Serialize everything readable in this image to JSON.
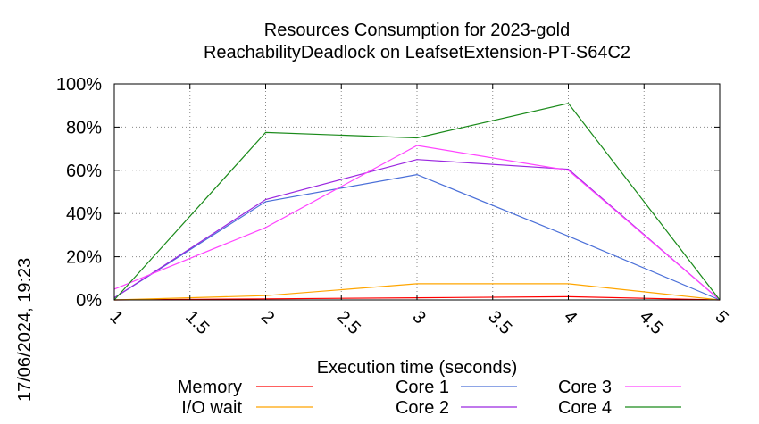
{
  "chart_data": {
    "type": "line",
    "title_lines": [
      "Resources Consumption for 2023-gold",
      "ReachabilityDeadlock on LeafsetExtension-PT-S64C2"
    ],
    "xlabel": "Execution time (seconds)",
    "ylabel": "",
    "side_stamp": "17/06/2024, 19:23",
    "xlim": [
      1,
      5
    ],
    "ylim": [
      0,
      100
    ],
    "x_ticks": [
      1,
      1.5,
      2,
      2.5,
      3,
      3.5,
      4,
      4.5,
      5
    ],
    "x_tick_labels": [
      "1",
      "1.5",
      "2",
      "2.5",
      "3",
      "3.5",
      "4",
      "4.5",
      "5"
    ],
    "y_ticks": [
      0,
      20,
      40,
      60,
      80,
      100
    ],
    "y_tick_labels": [
      "0%",
      "20%",
      "40%",
      "60%",
      "80%",
      "100%"
    ],
    "grid": true,
    "legend_position": "bottom",
    "series": [
      {
        "name": "Memory",
        "color": "#ff0000",
        "x": [
          1,
          2,
          3,
          4,
          5
        ],
        "y": [
          0,
          0.5,
          1,
          1.5,
          0
        ]
      },
      {
        "name": "I/O wait",
        "color": "#ffa500",
        "x": [
          1,
          2,
          3,
          4,
          5
        ],
        "y": [
          0,
          2,
          7.5,
          7.5,
          0
        ]
      },
      {
        "name": "Core 1",
        "color": "#4a6fd8",
        "x": [
          1,
          2,
          3,
          4,
          5
        ],
        "y": [
          1,
          45.5,
          58,
          29.5,
          0
        ]
      },
      {
        "name": "Core 2",
        "color": "#9b27e0",
        "x": [
          1,
          2,
          3,
          4,
          5
        ],
        "y": [
          1,
          46.5,
          65,
          60.5,
          0
        ]
      },
      {
        "name": "Core 3",
        "color": "#ff44ff",
        "x": [
          1,
          2,
          3,
          4,
          5
        ],
        "y": [
          5,
          33.5,
          71.5,
          60,
          0
        ]
      },
      {
        "name": "Core 4",
        "color": "#1a8a1a",
        "x": [
          1,
          2,
          3,
          4,
          5
        ],
        "y": [
          0,
          77.5,
          75,
          91,
          0
        ]
      }
    ]
  }
}
